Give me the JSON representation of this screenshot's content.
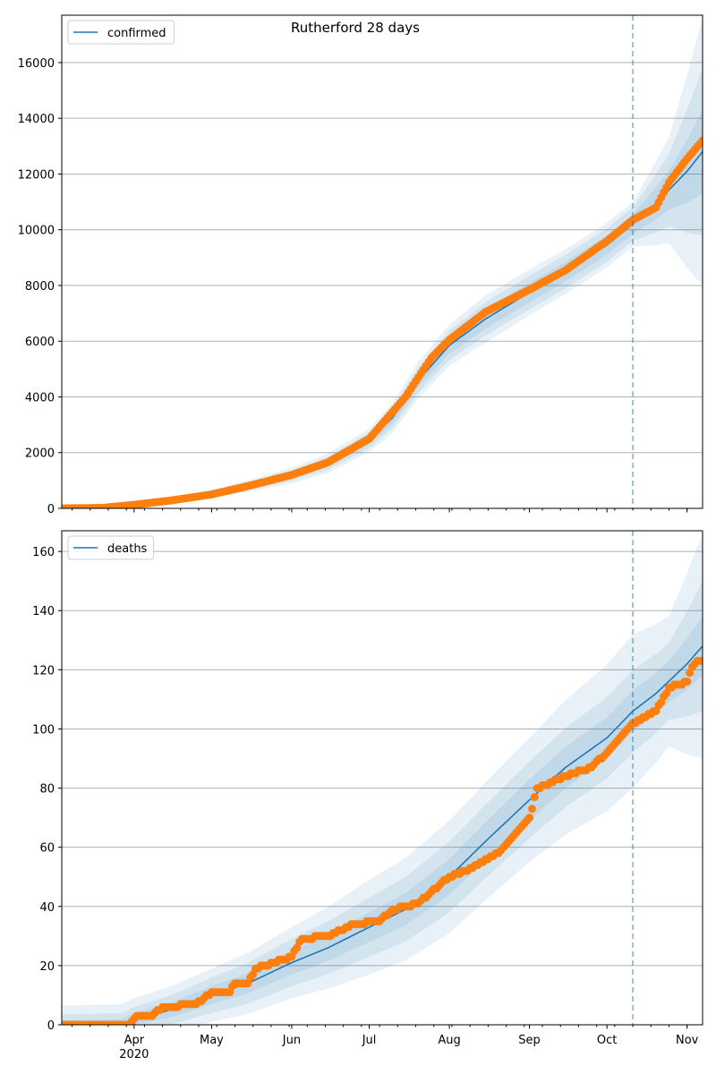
{
  "title": "Rutherford 28 days",
  "colors": {
    "line": "#1f77b4",
    "band": "#1f77b4",
    "dots": "#ff7f0e",
    "grid": "#b0b0b0",
    "vline": "#1f77b4"
  },
  "x_axis": {
    "month_ticks": [
      {
        "label": "Apr",
        "date": "2020-04-01"
      },
      {
        "label": "May",
        "date": "2020-05-01"
      },
      {
        "label": "Jun",
        "date": "2020-06-01"
      },
      {
        "label": "Jul",
        "date": "2020-07-01"
      },
      {
        "label": "Aug",
        "date": "2020-08-01"
      },
      {
        "label": "Sep",
        "date": "2020-09-01"
      },
      {
        "label": "Oct",
        "date": "2020-10-01"
      },
      {
        "label": "Nov",
        "date": "2020-11-01"
      }
    ],
    "year_label": "2020",
    "xlim": [
      "2020-03-04",
      "2020-11-07"
    ],
    "forecast_start": "2020-10-11"
  },
  "chart_data": [
    {
      "type": "line",
      "legend": "confirmed",
      "legend_position": "upper-left",
      "grid": true,
      "ylim": [
        0,
        17700
      ],
      "yticks": [
        "0",
        "2000",
        "4000",
        "6000",
        "8000",
        "10000",
        "12000",
        "14000",
        "16000"
      ],
      "model_line": {
        "x": [
          "2020-03-04",
          "2020-03-20",
          "2020-04-01",
          "2020-04-15",
          "2020-05-01",
          "2020-05-15",
          "2020-06-01",
          "2020-06-15",
          "2020-07-01",
          "2020-07-10",
          "2020-07-20",
          "2020-08-01",
          "2020-08-15",
          "2020-09-01",
          "2020-09-15",
          "2020-10-01",
          "2020-10-11",
          "2020-10-20",
          "2020-11-01",
          "2020-11-07"
        ],
        "y": [
          0,
          20,
          120,
          270,
          520,
          800,
          1180,
          1620,
          2450,
          3250,
          4600,
          5850,
          6800,
          7750,
          8500,
          9450,
          10200,
          10950,
          12100,
          12800
        ]
      },
      "band_half_widths": {
        "x": [
          "2020-03-04",
          "2020-05-01",
          "2020-07-01",
          "2020-07-20",
          "2020-08-15",
          "2020-09-15",
          "2020-10-11",
          "2020-10-25",
          "2020-11-07"
        ],
        "inner": [
          5,
          50,
          150,
          250,
          350,
          350,
          350,
          700,
          1500
        ],
        "middle": [
          10,
          90,
          280,
          450,
          600,
          600,
          600,
          1300,
          3000
        ],
        "outer": [
          15,
          140,
          420,
          650,
          850,
          800,
          800,
          1900,
          4800
        ]
      },
      "observed": {
        "x": [
          "2020-03-04",
          "2020-03-20",
          "2020-04-01",
          "2020-04-15",
          "2020-05-01",
          "2020-05-15",
          "2020-06-01",
          "2020-06-15",
          "2020-07-01",
          "2020-07-15",
          "2020-07-25",
          "2020-08-01",
          "2020-08-15",
          "2020-09-01",
          "2020-09-15",
          "2020-10-01",
          "2020-10-11",
          "2020-10-20",
          "2020-10-25",
          "2020-11-01",
          "2020-11-07"
        ],
        "y": [
          0,
          20,
          130,
          280,
          500,
          800,
          1200,
          1650,
          2500,
          4000,
          5400,
          6050,
          7050,
          7850,
          8550,
          9600,
          10350,
          10800,
          11700,
          12550,
          13200
        ]
      }
    },
    {
      "type": "line",
      "legend": "deaths",
      "legend_position": "upper-left",
      "grid": true,
      "ylim": [
        0,
        167
      ],
      "yticks": [
        "0",
        "20",
        "40",
        "60",
        "80",
        "100",
        "120",
        "140",
        "160"
      ],
      "model_line": {
        "x": [
          "2020-03-04",
          "2020-03-27",
          "2020-04-01",
          "2020-04-15",
          "2020-05-01",
          "2020-05-15",
          "2020-06-01",
          "2020-06-15",
          "2020-07-01",
          "2020-07-15",
          "2020-08-01",
          "2020-08-15",
          "2020-09-01",
          "2020-09-15",
          "2020-10-01",
          "2020-10-11",
          "2020-10-20",
          "2020-11-01",
          "2020-11-07"
        ],
        "y": [
          0,
          0,
          2,
          5,
          10,
          14,
          21,
          26,
          33,
          39,
          50,
          62,
          76,
          87,
          97,
          106,
          112,
          122,
          128
        ]
      },
      "band_half_widths": {
        "x": [
          "2020-03-04",
          "2020-04-01",
          "2020-05-01",
          "2020-06-01",
          "2020-07-01",
          "2020-08-01",
          "2020-09-01",
          "2020-10-11",
          "2020-10-25",
          "2020-11-07"
        ],
        "inner": [
          1.5,
          2,
          3,
          4,
          5,
          6,
          7,
          7,
          7,
          10
        ],
        "middle": [
          3.5,
          4,
          6,
          8,
          10,
          12,
          13,
          14,
          13,
          22
        ],
        "outer": [
          6.5,
          7,
          9,
          12,
          16,
          19,
          21,
          26,
          22,
          38
        ]
      },
      "observed": {
        "x": [
          "2020-03-04",
          "2020-03-30",
          "2020-04-02",
          "2020-04-08",
          "2020-04-12",
          "2020-04-25",
          "2020-05-01",
          "2020-05-08",
          "2020-05-10",
          "2020-05-15",
          "2020-05-18",
          "2020-06-01",
          "2020-06-05",
          "2020-06-15",
          "2020-06-25",
          "2020-07-05",
          "2020-07-10",
          "2020-07-20",
          "2020-07-25",
          "2020-08-01",
          "2020-08-10",
          "2020-08-20",
          "2020-08-25",
          "2020-09-01",
          "2020-09-04",
          "2020-09-15",
          "2020-09-25",
          "2020-10-01",
          "2020-10-10",
          "2020-10-20",
          "2020-10-25",
          "2020-11-01",
          "2020-11-03",
          "2020-11-05"
        ],
        "y": [
          0,
          0,
          3,
          3,
          6,
          7,
          11,
          11,
          14,
          14,
          19,
          23,
          29,
          30,
          34,
          35,
          39,
          41,
          45,
          50,
          53,
          58,
          63,
          70,
          80,
          84,
          87,
          92,
          101,
          106,
          114,
          116,
          121,
          123
        ]
      }
    }
  ]
}
